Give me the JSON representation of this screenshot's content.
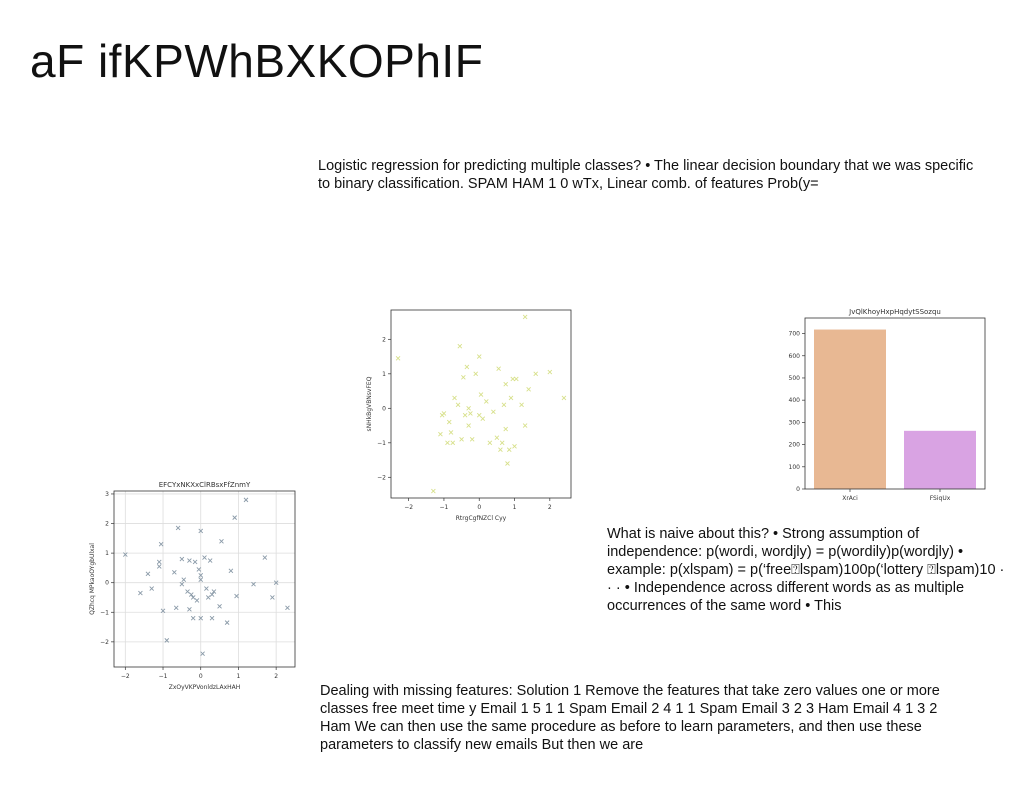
{
  "slide": {
    "title": "aF ifKPWhBXKOPhIF",
    "text_blocks": [
      "Logistic regression for predicting multiple classes? • The linear decision boundary that we was specific to binary classification. SPAM HAM 1 0 wTx, Linear comb. of features Prob(y=",
      "What is naive about this? • Strong assumption of independence: p(wordi, wordjly) = p(wordily)p(wordjly) • example: p(xlspam) = p(‘free⍰lspam)100p(‘lottery ⍰lspam)10 · · · • Independence across different words as as multiple occurrences of the same word • This",
      "Dealing with missing features: Solution 1 Remove the features that take zero values one or more classes free meet time y Email 1 5 1 1 Spam Email 2 4 1 1 Spam Email 3 2 3 Ham Email 4 1 3 2 Ham We can then use the same procedure as before to learn parameters, and then use these parameters to classify new emails But then we are"
    ]
  },
  "chart_data": [
    {
      "type": "scatter",
      "title": "",
      "xlabel": "RtrgCgfNZCl Cyy",
      "ylabel": "sNHkBgVBNsvFEQ",
      "xlim": [
        -2.5,
        2.6
      ],
      "ylim": [
        -2.6,
        2.85
      ],
      "xticks": [
        -2,
        -1,
        0,
        1,
        2
      ],
      "yticks": [
        -2,
        -1,
        0,
        1,
        2
      ],
      "grid": false,
      "marker": "x",
      "color": "#d7e08a",
      "x": [
        -2.3,
        -1.3,
        -1.1,
        -1.05,
        -1.0,
        -0.9,
        -0.85,
        -0.8,
        -0.75,
        -0.7,
        -0.6,
        -0.55,
        -0.5,
        -0.45,
        -0.4,
        -0.35,
        -0.3,
        -0.3,
        -0.25,
        -0.2,
        -0.1,
        0.0,
        0.0,
        0.05,
        0.1,
        0.2,
        0.3,
        0.4,
        0.5,
        0.55,
        0.6,
        0.65,
        0.7,
        0.75,
        0.75,
        0.8,
        0.85,
        0.9,
        0.95,
        1.0,
        1.05,
        1.2,
        1.3,
        1.4,
        1.6,
        2.0,
        2.4,
        1.3
      ],
      "y": [
        1.45,
        -2.4,
        -0.75,
        -0.2,
        -0.15,
        -1.0,
        -0.4,
        -0.7,
        -1.0,
        0.3,
        0.1,
        1.8,
        -0.9,
        0.9,
        -0.2,
        1.2,
        0.0,
        -0.5,
        -0.15,
        -0.9,
        1.0,
        1.5,
        -0.2,
        0.4,
        -0.3,
        0.2,
        -1.0,
        -0.1,
        -0.85,
        1.15,
        -1.2,
        -1.0,
        0.1,
        0.7,
        -0.6,
        -1.6,
        -1.2,
        0.3,
        0.85,
        -1.1,
        0.85,
        0.1,
        -0.5,
        0.55,
        1.0,
        1.05,
        0.3,
        2.65
      ]
    },
    {
      "type": "bar",
      "title": "JvQlKhoyHxpHqdytSSozqu",
      "categories": [
        "XrAci",
        "FSiqUx"
      ],
      "values": [
        718,
        262
      ],
      "colors": [
        "#e8b893",
        "#d9a3e3"
      ],
      "ylim": [
        0,
        770
      ],
      "yticks": [
        0,
        100,
        200,
        300,
        400,
        500,
        600,
        700
      ],
      "xlabel": "",
      "ylabel": "",
      "grid": false
    },
    {
      "type": "scatter",
      "title": "EFCYxNKXxClRBsxFfZnmY",
      "xlabel": "ZxOyVKPVonldzLAxHAH",
      "ylabel": "QZhcq MPkaoOYgbUlxal",
      "xlim": [
        -2.3,
        2.5
      ],
      "ylim": [
        -2.85,
        3.1
      ],
      "xticks": [
        -2,
        -1,
        0,
        1,
        2
      ],
      "yticks": [
        -2,
        -1,
        0,
        1,
        2,
        3
      ],
      "grid": true,
      "marker": "x",
      "color": "#8a9aa8",
      "x": [
        -2.0,
        -1.6,
        -1.4,
        -1.3,
        -1.1,
        -1.1,
        -1.05,
        -1.0,
        -0.9,
        -0.7,
        -0.65,
        -0.6,
        -0.5,
        -0.45,
        -0.35,
        -0.3,
        -0.3,
        -0.25,
        -0.2,
        -0.2,
        -0.15,
        -0.1,
        -0.05,
        0.0,
        0.0,
        0.0,
        0.05,
        0.1,
        0.15,
        0.2,
        0.25,
        0.3,
        0.35,
        0.5,
        0.55,
        0.7,
        0.8,
        0.9,
        0.95,
        1.2,
        1.4,
        1.7,
        1.9,
        2.0,
        2.3,
        -0.5,
        0.0,
        0.3
      ],
      "y": [
        0.95,
        -0.35,
        0.3,
        -0.2,
        0.7,
        0.55,
        1.3,
        -0.95,
        -1.95,
        0.35,
        -0.85,
        1.85,
        0.8,
        0.1,
        -0.3,
        -0.9,
        0.75,
        -0.4,
        -0.5,
        -1.2,
        0.7,
        -0.6,
        0.45,
        1.75,
        -1.2,
        0.25,
        -2.4,
        0.85,
        -0.2,
        -0.5,
        0.75,
        -1.2,
        -0.3,
        -0.8,
        1.4,
        -1.35,
        0.4,
        2.2,
        -0.45,
        2.8,
        -0.05,
        0.85,
        -0.5,
        0.0,
        -0.85,
        -0.05,
        0.1,
        -0.4
      ]
    }
  ]
}
